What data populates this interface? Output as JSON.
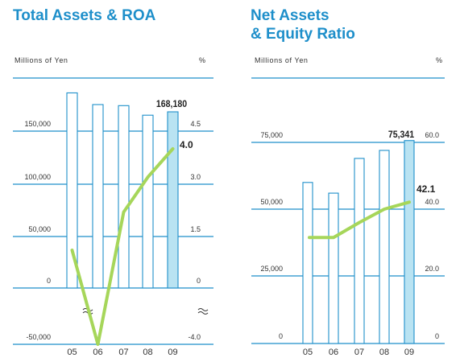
{
  "left": {
    "title_line1": "Total Assets & ROA",
    "title_line2": "",
    "unit_left": "Millions of Yen",
    "unit_right": "%"
  },
  "right": {
    "title_line1": "Net Assets",
    "title_line2": "& Equity Ratio",
    "unit_left": "Millions of Yen",
    "unit_right": "%"
  },
  "colors": {
    "accent": "#1e8fca",
    "bar_fill": "#ffffff",
    "bar_highlight": "#b9e3f2",
    "bar_stroke": "#1e8fca",
    "line": "#a6d65a",
    "axis_line": "#1e8fca"
  },
  "chart_data": [
    {
      "type": "bar+line",
      "title": "Total Assets & ROA",
      "xlabel": "",
      "categories": [
        "05",
        "06",
        "07",
        "08",
        "09"
      ],
      "series": [
        {
          "name": "",
          "type": "bar",
          "axis": "left",
          "values": [
            186000,
            175000,
            174000,
            165000,
            168180
          ]
        },
        {
          "name": "",
          "type": "line",
          "axis": "right",
          "values": [
            1.1,
            -4.0,
            2.2,
            3.2,
            4.0
          ]
        }
      ],
      "left_axis": {
        "label": "Millions of Yen",
        "ticks": [
          -50000,
          0,
          50000,
          100000,
          150000
        ],
        "tick_labels": [
          "-50,000",
          "0",
          "50,000",
          "100,000",
          "150,000"
        ]
      },
      "right_axis": {
        "label": "%",
        "ticks": [
          -4.0,
          0,
          1.5,
          3.0,
          4.5
        ],
        "tick_labels": [
          "-4.0",
          "0",
          "1.5",
          "3.0",
          "4.5"
        ]
      },
      "axis_break": true,
      "data_labels": [
        {
          "series_index": 0,
          "point_index": 4,
          "text": "168,180"
        },
        {
          "series_index": 1,
          "point_index": 4,
          "text": "4.0"
        }
      ],
      "highlight_index": 4,
      "grid": true
    },
    {
      "type": "bar+line",
      "title": "Net Assets & Equity Ratio",
      "xlabel": "",
      "categories": [
        "05",
        "06",
        "07",
        "08",
        "09"
      ],
      "series": [
        {
          "name": "",
          "type": "bar",
          "axis": "left",
          "values": [
            60000,
            56000,
            69000,
            72000,
            75341
          ]
        },
        {
          "name": "",
          "type": "line",
          "axis": "right",
          "values": [
            31.5,
            31.5,
            36.0,
            40.0,
            42.1
          ]
        }
      ],
      "left_axis": {
        "label": "Millions of Yen",
        "ticks": [
          0,
          25000,
          50000,
          75000
        ],
        "tick_labels": [
          "0",
          "25,000",
          "50,000",
          "75,000"
        ]
      },
      "right_axis": {
        "label": "%",
        "ticks": [
          0,
          20.0,
          40.0,
          60.0
        ],
        "tick_labels": [
          "0",
          "20.0",
          "40.0",
          "60.0"
        ]
      },
      "data_labels": [
        {
          "series_index": 0,
          "point_index": 4,
          "text": "75,341"
        },
        {
          "series_index": 1,
          "point_index": 4,
          "text": "42.1"
        }
      ],
      "highlight_index": 4,
      "grid": true
    }
  ]
}
